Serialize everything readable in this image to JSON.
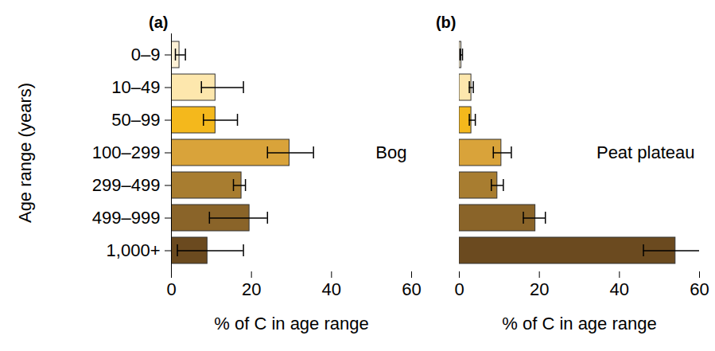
{
  "chart_data": [
    {
      "type": "bar",
      "orientation": "horizontal",
      "panel_label": "(a)",
      "annotation": "Bog",
      "y_label": "Age range (years)",
      "x_label": "% of C in age range",
      "categories": [
        "0–9",
        "10–49",
        "50–99",
        "100–299",
        "299–499",
        "499–999",
        "1,000+"
      ],
      "values": [
        2,
        11,
        11,
        29.5,
        17.5,
        19.5,
        9
      ],
      "err_low": [
        1,
        7.5,
        8,
        24,
        15.5,
        9.5,
        1.5
      ],
      "err_high": [
        3.5,
        18,
        16.5,
        35.5,
        18.5,
        24,
        18
      ],
      "colors": [
        "#fdf1d6",
        "#fde7ad",
        "#f4b81c",
        "#d9a33a",
        "#a87d30",
        "#8a6429",
        "#6b4a1f"
      ],
      "xlim": [
        0,
        60
      ],
      "xticks": [
        0,
        20,
        40,
        60
      ],
      "tick_labels": true
    },
    {
      "type": "bar",
      "orientation": "horizontal",
      "panel_label": "(b)",
      "annotation": "Peat plateau",
      "x_label": "% of C in age range",
      "categories": [
        "0–9",
        "10–49",
        "50–99",
        "100–299",
        "299–499",
        "499–999",
        "1,000+"
      ],
      "values": [
        0.5,
        3,
        3,
        10.5,
        9.5,
        19,
        54
      ],
      "err_low": [
        0.2,
        2.5,
        2.5,
        8.5,
        8,
        16,
        46
      ],
      "err_high": [
        0.8,
        3.5,
        4,
        13,
        11,
        21.5,
        61
      ],
      "colors": [
        "#fdf1d6",
        "#fde7ad",
        "#f4b81c",
        "#d9a33a",
        "#a87d30",
        "#8a6429",
        "#6b4a1f"
      ],
      "xlim": [
        0,
        60
      ],
      "xticks": [
        0,
        20,
        40,
        60
      ],
      "tick_labels": "x"
    }
  ]
}
